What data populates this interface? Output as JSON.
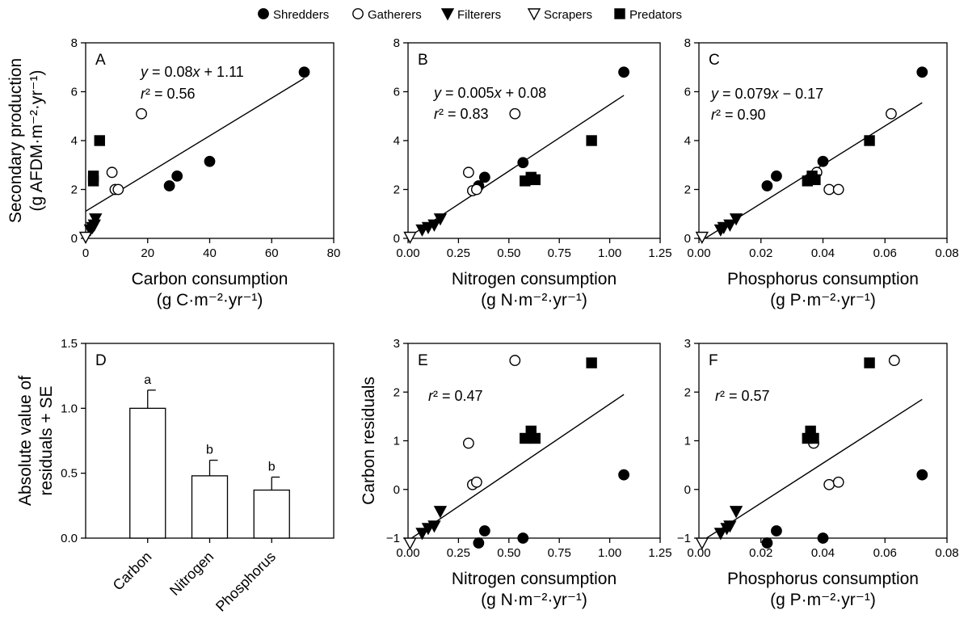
{
  "legend": [
    {
      "label": "Shredders",
      "marker": "circle",
      "fill": "#000000"
    },
    {
      "label": "Gatherers",
      "marker": "circle",
      "fill": "#ffffff"
    },
    {
      "label": "Filterers",
      "marker": "triangle-down",
      "fill": "#000000"
    },
    {
      "label": "Scrapers",
      "marker": "triangle-down",
      "fill": "#ffffff"
    },
    {
      "label": "Predators",
      "marker": "square",
      "fill": "#000000"
    }
  ],
  "chart_data": [
    {
      "panel": "A",
      "type": "scatter",
      "xlabel": "Carbon consumption",
      "xunit": "(g C·m⁻²·yr⁻¹)",
      "ylabel": "Secondary production",
      "yunit": "(g AFDM·m⁻²·yr⁻¹)",
      "xlim": [
        0,
        80
      ],
      "ylim": [
        0,
        8
      ],
      "xticks": [
        0,
        20,
        40,
        60,
        80
      ],
      "xtick_labels": [
        "0",
        "20",
        "40",
        "60",
        "80"
      ],
      "yticks": [
        0,
        2,
        4,
        6,
        8
      ],
      "ytick_labels": [
        "0",
        "2",
        "4",
        "6",
        "8"
      ],
      "equation_lines": [
        "y = 0.08x + 1.11",
        "r² = 0.56"
      ],
      "fit": {
        "x": [
          0,
          70.5
        ],
        "y": [
          1.11,
          6.55
        ]
      },
      "series": [
        {
          "name": "Shredders",
          "x": [
            27,
            29.5,
            40,
            70.5
          ],
          "y": [
            2.15,
            2.55,
            3.15,
            6.8
          ]
        },
        {
          "name": "Gatherers",
          "x": [
            8.5,
            9.5,
            10.5,
            18
          ],
          "y": [
            2.7,
            2.0,
            2.0,
            5.1
          ]
        },
        {
          "name": "Filterers",
          "x": [
            1.5,
            2.2,
            2.8,
            3.2
          ],
          "y": [
            0.35,
            0.45,
            0.55,
            0.8
          ]
        },
        {
          "name": "Scrapers",
          "x": [
            0
          ],
          "y": [
            0.05
          ]
        },
        {
          "name": "Predators",
          "x": [
            2.5,
            2.5,
            4.5
          ],
          "y": [
            2.35,
            2.55,
            4.0
          ]
        }
      ]
    },
    {
      "panel": "B",
      "type": "scatter",
      "xlabel": "Nitrogen consumption",
      "xunit": "(g N·m⁻²·yr⁻¹)",
      "ylabel": "",
      "yunit": "",
      "xlim": [
        0,
        1.25
      ],
      "ylim": [
        0,
        8
      ],
      "xticks": [
        0,
        0.25,
        0.5,
        0.75,
        1.0,
        1.25
      ],
      "xtick_labels": [
        "0.00",
        "0.25",
        "0.50",
        "0.75",
        "1.00",
        "1.25"
      ],
      "yticks": [
        0,
        2,
        4,
        6,
        8
      ],
      "ytick_labels": [
        "0",
        "2",
        "4",
        "6",
        "8"
      ],
      "equation_lines": [
        "y = 0.005x + 0.08",
        "r² = 0.83"
      ],
      "fit": {
        "x": [
          0.03,
          1.07
        ],
        "y": [
          0.2,
          5.85
        ]
      },
      "series": [
        {
          "name": "Shredders",
          "x": [
            0.35,
            0.38,
            0.57,
            1.07
          ],
          "y": [
            2.15,
            2.5,
            3.1,
            6.8
          ]
        },
        {
          "name": "Gatherers",
          "x": [
            0.3,
            0.32,
            0.34,
            0.53
          ],
          "y": [
            2.7,
            1.95,
            2.0,
            5.1
          ]
        },
        {
          "name": "Filterers",
          "x": [
            0.07,
            0.1,
            0.13,
            0.16
          ],
          "y": [
            0.35,
            0.45,
            0.55,
            0.8
          ]
        },
        {
          "name": "Scrapers",
          "x": [
            0.01
          ],
          "y": [
            0.05
          ]
        },
        {
          "name": "Predators",
          "x": [
            0.58,
            0.61,
            0.63,
            0.91
          ],
          "y": [
            2.35,
            2.5,
            2.4,
            4.0
          ]
        }
      ]
    },
    {
      "panel": "C",
      "type": "scatter",
      "xlabel": "Phosphorus consumption",
      "xunit": "(g P·m⁻²·yr⁻¹)",
      "ylabel": "",
      "yunit": "",
      "xlim": [
        0,
        0.08
      ],
      "ylim": [
        0,
        8
      ],
      "xticks": [
        0,
        0.02,
        0.04,
        0.06,
        0.08
      ],
      "xtick_labels": [
        "0.00",
        "0.02",
        "0.04",
        "0.06",
        "0.08"
      ],
      "yticks": [
        0,
        2,
        4,
        6,
        8
      ],
      "ytick_labels": [
        "0",
        "2",
        "4",
        "6",
        "8"
      ],
      "equation_lines": [
        "y = 0.079x − 0.17",
        "r² = 0.90"
      ],
      "fit": {
        "x": [
          0.002,
          0.072
        ],
        "y": [
          0.0,
          5.55
        ]
      },
      "series": [
        {
          "name": "Shredders",
          "x": [
            0.022,
            0.025,
            0.04,
            0.072
          ],
          "y": [
            2.15,
            2.55,
            3.15,
            6.8
          ]
        },
        {
          "name": "Gatherers",
          "x": [
            0.038,
            0.042,
            0.045,
            0.062
          ],
          "y": [
            2.7,
            2.0,
            2.0,
            5.1
          ]
        },
        {
          "name": "Filterers",
          "x": [
            0.007,
            0.008,
            0.01,
            0.012
          ],
          "y": [
            0.35,
            0.45,
            0.55,
            0.8
          ]
        },
        {
          "name": "Scrapers",
          "x": [
            0.001
          ],
          "y": [
            0.05
          ]
        },
        {
          "name": "Predators",
          "x": [
            0.035,
            0.0365,
            0.0375,
            0.055
          ],
          "y": [
            2.35,
            2.55,
            2.4,
            4.0
          ]
        }
      ]
    },
    {
      "panel": "D",
      "type": "bar",
      "ylabel": "Absolute value of",
      "ylabel2": "residuals + SE",
      "ylim": [
        0,
        1.5
      ],
      "yticks": [
        0,
        0.5,
        1.0,
        1.5
      ],
      "ytick_labels": [
        "0.0",
        "0.5",
        "1.0",
        "1.5"
      ],
      "categories": [
        "Carbon",
        "Nitrogen",
        "Phosphorus"
      ],
      "values": [
        1.0,
        0.48,
        0.37
      ],
      "errors": [
        0.14,
        0.12,
        0.1
      ],
      "letters": [
        "a",
        "b",
        "b"
      ]
    },
    {
      "panel": "E",
      "type": "scatter",
      "xlabel": "Nitrogen consumption",
      "xunit": "(g N·m⁻²·yr⁻¹)",
      "ylabel": "Carbon residuals",
      "yunit": "",
      "xlim": [
        0,
        1.25
      ],
      "ylim": [
        -1,
        3
      ],
      "xticks": [
        0,
        0.25,
        0.5,
        0.75,
        1.0,
        1.25
      ],
      "xtick_labels": [
        "0.00",
        "0.25",
        "0.50",
        "0.75",
        "1.00",
        "1.25"
      ],
      "yticks": [
        -1,
        0,
        1,
        2,
        3
      ],
      "ytick_labels": [
        "−1",
        "0",
        "1",
        "2",
        "3"
      ],
      "equation_lines": [
        "r² = 0.47"
      ],
      "fit": {
        "x": [
          0.0,
          1.07
        ],
        "y": [
          -1.05,
          1.95
        ]
      },
      "series": [
        {
          "name": "Shredders",
          "x": [
            0.35,
            0.38,
            0.57,
            1.07
          ],
          "y": [
            -1.1,
            -0.85,
            -1.0,
            0.3
          ]
        },
        {
          "name": "Gatherers",
          "x": [
            0.3,
            0.32,
            0.34,
            0.53
          ],
          "y": [
            0.95,
            0.1,
            0.15,
            2.65
          ]
        },
        {
          "name": "Filterers",
          "x": [
            0.07,
            0.1,
            0.13,
            0.16
          ],
          "y": [
            -0.9,
            -0.8,
            -0.75,
            -0.45
          ]
        },
        {
          "name": "Scrapers",
          "x": [
            0.01
          ],
          "y": [
            -1.1
          ]
        },
        {
          "name": "Predators",
          "x": [
            0.58,
            0.61,
            0.63,
            0.91
          ],
          "y": [
            1.05,
            1.2,
            1.05,
            2.6
          ]
        }
      ]
    },
    {
      "panel": "F",
      "type": "scatter",
      "xlabel": "Phosphorus consumption",
      "xunit": "(g P·m⁻²·yr⁻¹)",
      "ylabel": "",
      "yunit": "",
      "xlim": [
        0,
        0.08
      ],
      "ylim": [
        -1,
        3
      ],
      "xticks": [
        0,
        0.02,
        0.04,
        0.06,
        0.08
      ],
      "xtick_labels": [
        "0.00",
        "0.02",
        "0.04",
        "0.06",
        "0.08"
      ],
      "yticks": [
        -1,
        0,
        1,
        2,
        3
      ],
      "ytick_labels": [
        "−1",
        "0",
        "1",
        "2",
        "3"
      ],
      "equation_lines": [
        "r² = 0.57"
      ],
      "fit": {
        "x": [
          0.0,
          0.072
        ],
        "y": [
          -1.1,
          1.85
        ]
      },
      "series": [
        {
          "name": "Shredders",
          "x": [
            0.022,
            0.025,
            0.04,
            0.072
          ],
          "y": [
            -1.1,
            -0.85,
            -1.0,
            0.3
          ]
        },
        {
          "name": "Gatherers",
          "x": [
            0.037,
            0.042,
            0.045,
            0.063
          ],
          "y": [
            0.95,
            0.1,
            0.15,
            2.65
          ]
        },
        {
          "name": "Filterers",
          "x": [
            0.007,
            0.009,
            0.01,
            0.012
          ],
          "y": [
            -0.9,
            -0.8,
            -0.75,
            -0.45
          ]
        },
        {
          "name": "Scrapers",
          "x": [
            0.001
          ],
          "y": [
            -1.1
          ]
        },
        {
          "name": "Predators",
          "x": [
            0.035,
            0.036,
            0.037,
            0.055
          ],
          "y": [
            1.05,
            1.2,
            1.05,
            2.6
          ]
        }
      ]
    }
  ]
}
